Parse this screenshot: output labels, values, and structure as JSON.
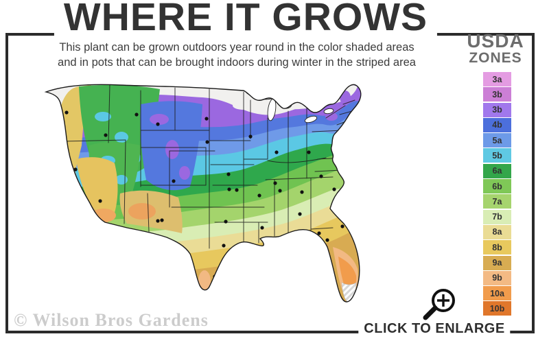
{
  "title": "WHERE IT GROWS",
  "subtitle": {
    "line1": "This plant can be grown outdoors year round in the color shaded areas",
    "line2": "and in pots that can be brought indoors during winter in the striped area"
  },
  "legend": {
    "heading_line1": "USDA",
    "heading_line2": "ZONES",
    "zones": [
      {
        "label": "3a",
        "color": "#E49CE2"
      },
      {
        "label": "3b",
        "color": "#CC7FD6"
      },
      {
        "label": "3b",
        "color": "#A178EC"
      },
      {
        "label": "4b",
        "color": "#4C6FDC"
      },
      {
        "label": "5a",
        "color": "#6D9AE8"
      },
      {
        "label": "5b",
        "color": "#5FC9E3"
      },
      {
        "label": "6a",
        "color": "#33A64A"
      },
      {
        "label": "6b",
        "color": "#7FC857"
      },
      {
        "label": "7a",
        "color": "#A6D46E"
      },
      {
        "label": "7b",
        "color": "#D9EDB5"
      },
      {
        "label": "8a",
        "color": "#EADC94"
      },
      {
        "label": "8b",
        "color": "#E8C95E"
      },
      {
        "label": "9a",
        "color": "#D8AC52"
      },
      {
        "label": "9b",
        "color": "#F3BA84"
      },
      {
        "label": "10a",
        "color": "#F19C4C"
      },
      {
        "label": "10b",
        "color": "#E0772B"
      }
    ]
  },
  "enlarge_label": "CLICK TO ENLARGE",
  "watermark": "© Wilson Bros Gardens",
  "colors": {
    "frame": "#2b2b2b",
    "title_text": "#333333",
    "legend_heading_text": "#6d6d6d",
    "watermark_text": "#cccccc"
  }
}
